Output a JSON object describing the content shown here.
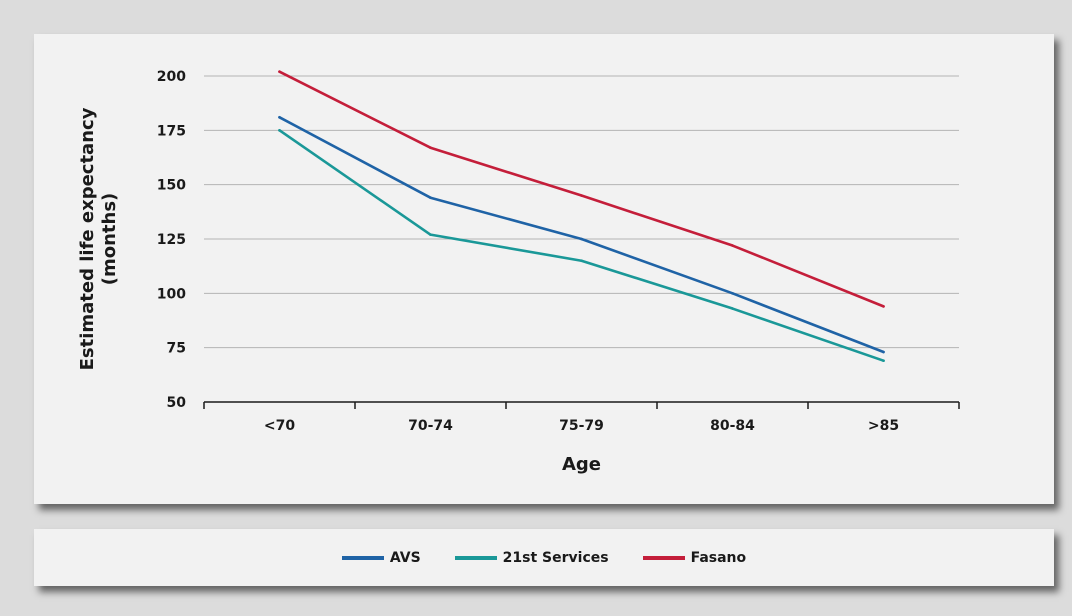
{
  "chart_data": {
    "type": "line",
    "categories": [
      "<70",
      "70-74",
      "75-79",
      "80-84",
      ">85"
    ],
    "series": [
      {
        "name": "AVS",
        "color": "#1f63a6",
        "values": [
          181,
          144,
          125,
          100,
          73
        ]
      },
      {
        "name": "21st Services",
        "color": "#1a9898",
        "values": [
          175,
          127,
          115,
          93,
          69
        ]
      },
      {
        "name": "Fasano",
        "color": "#c41e3a",
        "values": [
          202,
          167,
          145,
          122,
          94
        ]
      }
    ],
    "xlabel": "Age",
    "ylabel": "Estimated life expectancy\n(months)",
    "ylim": [
      50,
      200
    ],
    "yticks": [
      50,
      75,
      100,
      125,
      150,
      175,
      200
    ],
    "grid": true,
    "legend_position": "bottom"
  }
}
